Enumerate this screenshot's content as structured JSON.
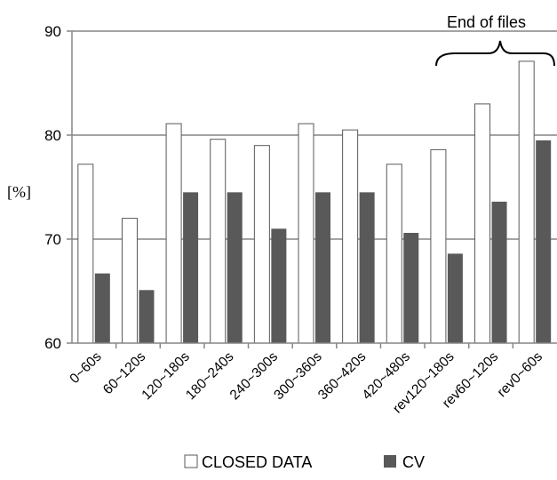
{
  "chart_data": {
    "type": "bar",
    "ylabel": "[%]",
    "ylim": [
      60,
      90
    ],
    "yticks": [
      60,
      70,
      80,
      90
    ],
    "grid": true,
    "legend_position": "bottom",
    "categories": [
      "0~60s",
      "60~120s",
      "120~180s",
      "180~240s",
      "240~300s",
      "300~360s",
      "360~420s",
      "420~480s",
      "rev120~180s",
      "rev60~120s",
      "rev0~60s"
    ],
    "series": [
      {
        "name": "CLOSED DATA",
        "color": "#ffffff",
        "values": [
          77.2,
          72.0,
          81.1,
          79.6,
          79.0,
          81.1,
          80.5,
          77.2,
          78.6,
          83.0,
          87.1
        ]
      },
      {
        "name": "CV",
        "color": "#595959",
        "values": [
          66.7,
          65.1,
          74.5,
          74.5,
          71.0,
          74.5,
          74.5,
          70.6,
          68.6,
          73.6,
          79.5
        ]
      }
    ],
    "annotation": "End of files"
  }
}
